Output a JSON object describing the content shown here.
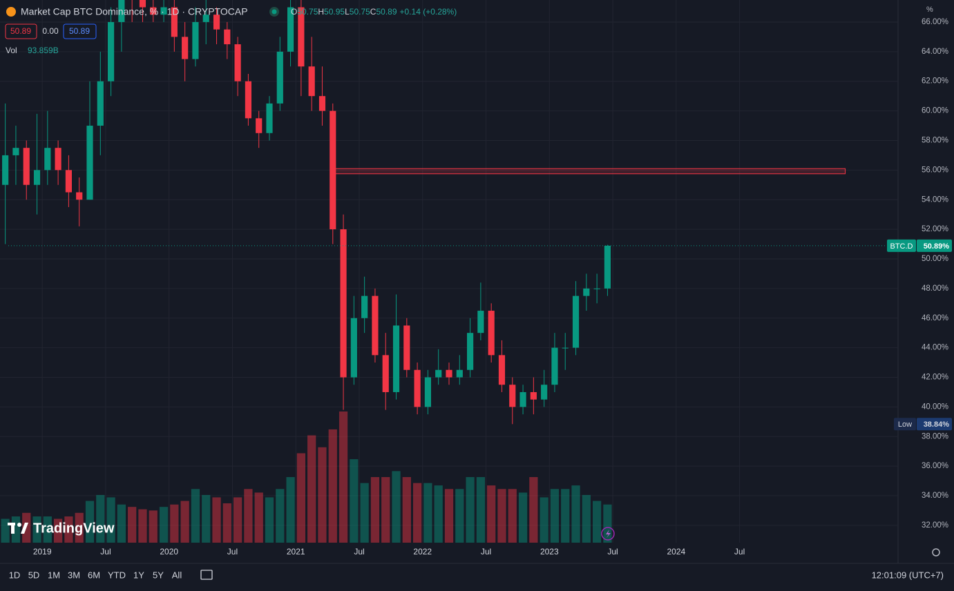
{
  "header": {
    "title": "Market Cap BTC Dominance, % · 1D · CRYPTOCAP",
    "ohlc": [
      {
        "label": "O",
        "value": 50.75
      },
      {
        "label": "H",
        "value": 50.95
      },
      {
        "label": "L",
        "value": 50.75
      },
      {
        "label": "C",
        "value": 50.89
      }
    ],
    "change": "+0.14 (+0.28%)",
    "sell": 50.89,
    "spread": "0.00",
    "buy": 50.89,
    "vol_label": "Vol",
    "vol_value": "93.859B"
  },
  "chart_data": {
    "type": "candlestick",
    "unit": "%",
    "x": [
      "2018-09",
      "2018-10",
      "2018-11",
      "2018-12",
      "2019-01",
      "2019-02",
      "2019-03",
      "2019-04",
      "2019-05",
      "2019-06",
      "2019-07",
      "2019-08",
      "2019-09",
      "2019-10",
      "2019-11",
      "2019-12",
      "2020-01",
      "2020-02",
      "2020-03",
      "2020-04",
      "2020-05",
      "2020-06",
      "2020-07",
      "2020-08",
      "2020-09",
      "2020-10",
      "2020-11",
      "2020-12",
      "2021-01",
      "2021-02",
      "2021-03",
      "2021-04",
      "2021-05",
      "2021-06",
      "2021-07",
      "2021-08",
      "2021-09",
      "2021-10",
      "2021-11",
      "2021-12",
      "2022-01",
      "2022-02",
      "2022-03",
      "2022-04",
      "2022-05",
      "2022-06",
      "2022-07",
      "2022-08",
      "2022-09",
      "2022-10",
      "2022-11",
      "2022-12",
      "2023-01",
      "2023-02",
      "2023-03",
      "2023-04",
      "2023-05",
      "2023-06"
    ],
    "open": [
      55,
      57,
      57.5,
      55,
      56,
      57.5,
      56,
      54.5,
      54,
      59,
      62,
      66,
      69,
      68,
      67,
      66.5,
      67,
      65,
      63.5,
      66,
      66.5,
      65.5,
      64.5,
      62,
      59.5,
      58.5,
      60.5,
      64,
      67,
      63,
      61,
      60,
      52,
      42,
      46,
      47.5,
      43.5,
      41,
      45.5,
      42.5,
      40,
      42,
      42.5,
      42,
      42.5,
      45,
      46.5,
      43.5,
      41.5,
      40,
      41,
      40.5,
      41.5,
      44,
      44,
      47.5,
      48,
      48
    ],
    "high": [
      60.5,
      59,
      58,
      59.8,
      60,
      58,
      57,
      55.5,
      62,
      64,
      67,
      70,
      71,
      69,
      68,
      68,
      68,
      66,
      67,
      68,
      67,
      66,
      65,
      62.5,
      60,
      61,
      65,
      68,
      69,
      65,
      63,
      60.5,
      53,
      47.5,
      48.8,
      48,
      45,
      47.6,
      46,
      43,
      42.5,
      43.9,
      43,
      43.5,
      46,
      48.4,
      47,
      44.5,
      42,
      41.5,
      42,
      42.5,
      45,
      45,
      48.5,
      49,
      49,
      50.95
    ],
    "low": [
      51,
      55,
      54,
      53,
      55,
      55,
      53.5,
      52.2,
      54,
      57,
      61,
      64,
      66,
      66,
      66,
      66,
      64,
      62,
      63,
      64.5,
      64.5,
      63.5,
      61,
      59,
      57.5,
      58,
      60,
      63,
      61,
      60,
      59,
      51,
      39.8,
      41.5,
      45,
      43,
      39.8,
      40.5,
      42,
      39.5,
      39.5,
      41.5,
      41.5,
      41.5,
      42,
      44.5,
      43,
      41,
      38.84,
      39.5,
      39.5,
      40,
      41,
      42.5,
      43.5,
      46.5,
      47,
      47.5
    ],
    "close": [
      57,
      57.5,
      55,
      56,
      57.5,
      56,
      54.5,
      54,
      59,
      62,
      66,
      69,
      68,
      67,
      66.5,
      67,
      65,
      63.5,
      66,
      66.5,
      65.5,
      64.5,
      62,
      59.5,
      58.5,
      60.5,
      64,
      67,
      63,
      61,
      60,
      52,
      42,
      46,
      47.5,
      43.5,
      41,
      45.5,
      42.5,
      40,
      42,
      42.5,
      42,
      42.5,
      45,
      46.5,
      43.5,
      41.5,
      40,
      41,
      40.5,
      41.5,
      44,
      44,
      47.5,
      48,
      48,
      50.89
    ],
    "volume": [
      20,
      22,
      25,
      22,
      22,
      20,
      22,
      25,
      35,
      40,
      38,
      32,
      30,
      28,
      27,
      30,
      32,
      35,
      45,
      40,
      38,
      33,
      38,
      45,
      42,
      38,
      45,
      55,
      75,
      90,
      80,
      95,
      110,
      70,
      50,
      55,
      55,
      60,
      55,
      50,
      50,
      48,
      45,
      45,
      55,
      55,
      48,
      45,
      45,
      42,
      55,
      38,
      45,
      45,
      48,
      40,
      35,
      32
    ],
    "up_color": "#089981",
    "down_color": "#f23645",
    "xlim": [
      "2018-09",
      "2025-10"
    ],
    "xticks": [
      {
        "value": "2019-01",
        "label": "2019"
      },
      {
        "value": "2019-07",
        "label": "Jul"
      },
      {
        "value": "2020-01",
        "label": "2020"
      },
      {
        "value": "2020-07",
        "label": "Jul"
      },
      {
        "value": "2021-01",
        "label": "2021"
      },
      {
        "value": "2021-07",
        "label": "Jul"
      },
      {
        "value": "2022-01",
        "label": "2022"
      },
      {
        "value": "2022-07",
        "label": "Jul"
      },
      {
        "value": "2023-01",
        "label": "2023"
      },
      {
        "value": "2023-07",
        "label": "Jul"
      },
      {
        "value": "2024-01",
        "label": "2024"
      },
      {
        "value": "2024-07",
        "label": "Jul"
      }
    ],
    "ylim": [
      30.83,
      67.49
    ],
    "yticks": [
      {
        "value": 32,
        "label": "32.00%"
      },
      {
        "value": 34,
        "label": "34.00%"
      },
      {
        "value": 36,
        "label": "36.00%"
      },
      {
        "value": 38,
        "label": "38.00%"
      },
      {
        "value": 40,
        "label": "40.00%"
      },
      {
        "value": 42,
        "label": "42.00%"
      },
      {
        "value": 44,
        "label": "44.00%"
      },
      {
        "value": 46,
        "label": "46.00%"
      },
      {
        "value": 48,
        "label": "48.00%"
      },
      {
        "value": 50,
        "label": "50.00%"
      },
      {
        "value": 52,
        "label": "52.00%"
      },
      {
        "value": 54,
        "label": "54.00%"
      },
      {
        "value": 56,
        "label": "56.00%"
      },
      {
        "value": 58,
        "label": "58.00%"
      },
      {
        "value": 60,
        "label": "60.00%"
      },
      {
        "value": 62,
        "label": "62.00%"
      },
      {
        "value": 64,
        "label": "64.00%"
      },
      {
        "value": 66,
        "label": "66.00%"
      }
    ],
    "grid": true,
    "zone": {
      "x": [
        "2021-04",
        "2025-05"
      ],
      "y": [
        55.75,
        56.1
      ],
      "color": "#f23645"
    },
    "last_price": {
      "name": "BTC.D",
      "value": 50.89,
      "label": "50.89%"
    },
    "low_marker": {
      "name": "Low",
      "value": 38.84,
      "label": "38.84%"
    }
  },
  "watermark": "TradingView",
  "toolbar": {
    "ranges": [
      "1D",
      "5D",
      "1M",
      "3M",
      "6M",
      "YTD",
      "1Y",
      "5Y",
      "All"
    ],
    "clock": "12:01:09 (UTC+7)"
  }
}
